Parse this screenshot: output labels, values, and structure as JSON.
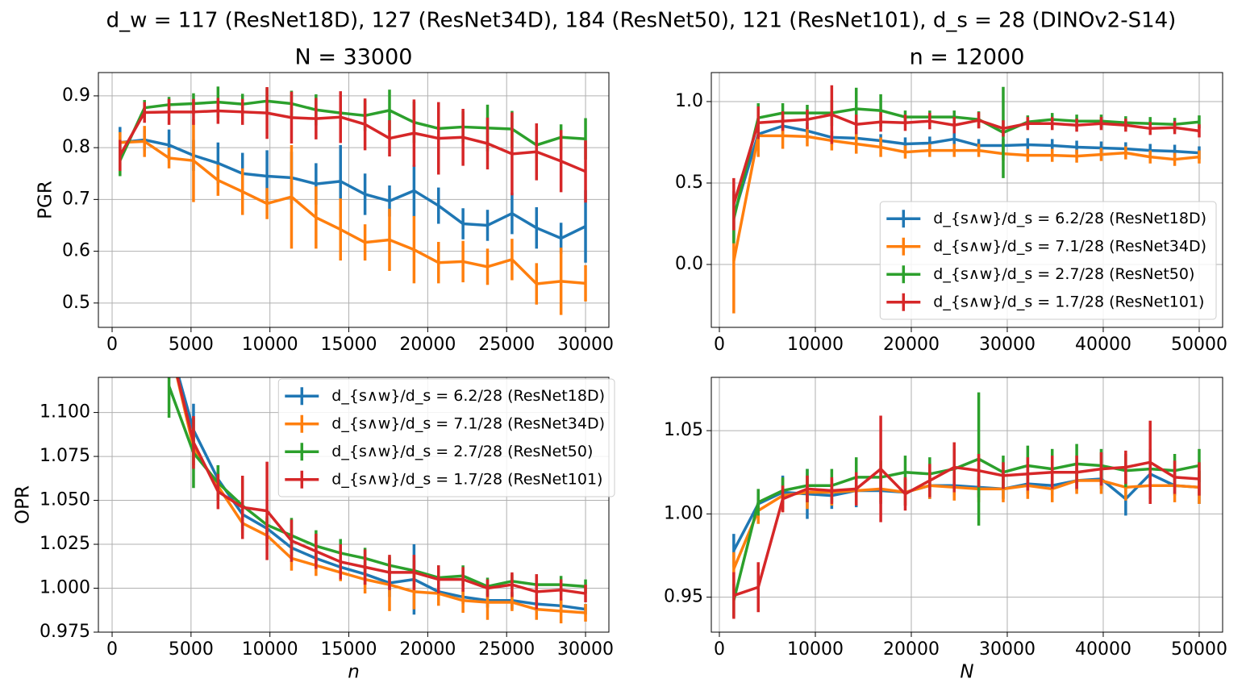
{
  "title": "d_w = 117 (ResNet18D), 127 (ResNet34D), 184 (ResNet50), 121 (ResNet101), d_s = 28 (DINOv2-S14)",
  "chart_data": [
    {
      "type": "line",
      "title": "N = 33000",
      "ylabel": "PGR",
      "grid": true,
      "x": [
        500,
        2053,
        3605,
        5158,
        6711,
        8263,
        9816,
        11368,
        12921,
        14474,
        16026,
        17579,
        19132,
        20684,
        22237,
        23789,
        25342,
        26895,
        28447,
        30000
      ],
      "xlim": [
        -870,
        31480
      ],
      "ylim": [
        0.453,
        0.945
      ],
      "xticks": [
        0,
        5000,
        10000,
        15000,
        20000,
        25000,
        30000
      ],
      "yticks": [
        0.5,
        0.6,
        0.7,
        0.8,
        0.9
      ],
      "series": [
        {
          "color": "#1f77b4",
          "values": [
            0.81,
            0.815,
            0.805,
            0.785,
            0.77,
            0.75,
            0.745,
            0.742,
            0.73,
            0.735,
            0.71,
            0.697,
            0.717,
            0.688,
            0.653,
            0.65,
            0.673,
            0.645,
            0.625,
            0.648
          ],
          "errors": [
            0.03,
            0.02,
            0.03,
            0.03,
            0.04,
            0.04,
            0.05,
            0.05,
            0.04,
            0.07,
            0.04,
            0.03,
            0.05,
            0.035,
            0.03,
            0.03,
            0.04,
            0.04,
            0.03,
            0.07
          ]
        },
        {
          "color": "#ff7f0e",
          "values": [
            0.81,
            0.812,
            0.78,
            0.775,
            0.737,
            0.715,
            0.692,
            0.705,
            0.665,
            0.642,
            0.617,
            0.622,
            0.603,
            0.578,
            0.58,
            0.57,
            0.584,
            0.537,
            0.542,
            0.538
          ],
          "errors": [
            0.02,
            0.03,
            0.02,
            0.08,
            0.03,
            0.045,
            0.03,
            0.1,
            0.06,
            0.06,
            0.035,
            0.06,
            0.065,
            0.04,
            0.04,
            0.035,
            0.04,
            0.04,
            0.065,
            0.035
          ]
        },
        {
          "color": "#2ca02c",
          "values": [
            0.775,
            0.877,
            0.883,
            0.885,
            0.888,
            0.884,
            0.89,
            0.885,
            0.873,
            0.867,
            0.862,
            0.872,
            0.849,
            0.837,
            0.84,
            0.838,
            0.836,
            0.805,
            0.82,
            0.817
          ],
          "errors": [
            0.03,
            0.015,
            0.015,
            0.02,
            0.03,
            0.02,
            0.025,
            0.025,
            0.03,
            0.025,
            0.03,
            0.04,
            0.04,
            0.03,
            0.03,
            0.045,
            0.035,
            0.03,
            0.025,
            0.04
          ]
        },
        {
          "color": "#d62728",
          "values": [
            0.785,
            0.868,
            0.869,
            0.869,
            0.871,
            0.869,
            0.867,
            0.858,
            0.856,
            0.859,
            0.845,
            0.818,
            0.828,
            0.818,
            0.82,
            0.808,
            0.788,
            0.792,
            0.774,
            0.754
          ],
          "errors": [
            0.03,
            0.02,
            0.025,
            0.025,
            0.025,
            0.025,
            0.05,
            0.05,
            0.04,
            0.05,
            0.05,
            0.035,
            0.065,
            0.07,
            0.055,
            0.05,
            0.08,
            0.055,
            0.06,
            0.06
          ]
        }
      ]
    },
    {
      "type": "line",
      "title": "n = 12000",
      "grid": true,
      "legend": "lower right",
      "x": [
        1500,
        4053,
        6605,
        9158,
        11711,
        14263,
        16816,
        19368,
        21921,
        24474,
        27026,
        29579,
        32132,
        34684,
        37237,
        39789,
        42342,
        44895,
        47447,
        50000
      ],
      "xlim": [
        -840,
        52440
      ],
      "ylim": [
        -0.386,
        1.178
      ],
      "xticks": [
        0,
        10000,
        20000,
        30000,
        40000,
        50000
      ],
      "yticks": [
        {
          "value": 0,
          "label": "0.0"
        },
        0.5,
        {
          "value": 1,
          "label": "1.0"
        }
      ],
      "series": [
        {
          "name": "d_{s∧w}/d_s = 6.2/28 (ResNet18D)",
          "color": "#1f77b4",
          "values": [
            0.3,
            0.8,
            0.85,
            0.82,
            0.78,
            0.775,
            0.76,
            0.74,
            0.745,
            0.77,
            0.73,
            0.73,
            0.735,
            0.73,
            0.72,
            0.715,
            0.71,
            0.7,
            0.695,
            0.685
          ],
          "errors": [
            0.15,
            0.1,
            0.05,
            0.05,
            0.04,
            0.04,
            0.04,
            0.04,
            0.04,
            0.04,
            0.04,
            0.04,
            0.04,
            0.04,
            0.04,
            0.04,
            0.04,
            0.04,
            0.04,
            0.04
          ]
        },
        {
          "name": "d_{s∧w}/d_s = 7.1/28 (ResNet34D)",
          "color": "#ff7f0e",
          "values": [
            0.02,
            0.79,
            0.79,
            0.785,
            0.76,
            0.74,
            0.72,
            0.69,
            0.7,
            0.7,
            0.7,
            0.68,
            0.67,
            0.67,
            0.665,
            0.675,
            0.685,
            0.66,
            0.645,
            0.66
          ],
          "errors": [
            0.32,
            0.13,
            0.08,
            0.06,
            0.06,
            0.06,
            0.06,
            0.04,
            0.04,
            0.04,
            0.04,
            0.04,
            0.04,
            0.04,
            0.04,
            0.04,
            0.04,
            0.04,
            0.04,
            0.04
          ]
        },
        {
          "name": "d_{s∧w}/d_s = 2.7/28 (ResNet50)",
          "color": "#2ca02c",
          "values": [
            0.28,
            0.9,
            0.93,
            0.93,
            0.93,
            0.955,
            0.945,
            0.905,
            0.905,
            0.905,
            0.89,
            0.81,
            0.875,
            0.89,
            0.88,
            0.88,
            0.87,
            0.865,
            0.86,
            0.875
          ],
          "errors": [
            0.15,
            0.09,
            0.06,
            0.05,
            0.08,
            0.13,
            0.1,
            0.04,
            0.04,
            0.04,
            0.05,
            0.28,
            0.04,
            0.04,
            0.04,
            0.04,
            0.04,
            0.04,
            0.04,
            0.04
          ]
        },
        {
          "name": "d_{s∧w}/d_s = 1.7/28 (ResNet101)",
          "color": "#d62728",
          "values": [
            0.37,
            0.87,
            0.88,
            0.89,
            0.92,
            0.86,
            0.875,
            0.87,
            0.88,
            0.855,
            0.885,
            0.835,
            0.865,
            0.865,
            0.855,
            0.865,
            0.855,
            0.835,
            0.84,
            0.82
          ],
          "errors": [
            0.16,
            0.1,
            0.06,
            0.06,
            0.18,
            0.06,
            0.06,
            0.05,
            0.05,
            0.05,
            0.05,
            0.05,
            0.04,
            0.04,
            0.04,
            0.04,
            0.04,
            0.04,
            0.04,
            0.04
          ]
        }
      ]
    },
    {
      "type": "line",
      "xlabel": "n",
      "ylabel": "OPR",
      "grid": true,
      "legend": "upper right",
      "x": [
        3605,
        5158,
        6711,
        8263,
        9816,
        11368,
        12921,
        14474,
        16026,
        17579,
        19132,
        20684,
        22237,
        23789,
        25342,
        26895,
        28447,
        30000
      ],
      "xlim": [
        -870,
        31480
      ],
      "ylim": [
        0.975,
        1.12
      ],
      "xticks": [
        0,
        5000,
        10000,
        15000,
        20000,
        25000,
        30000
      ],
      "yticks": [
        0.975,
        {
          "value": 1,
          "label": "1.000"
        },
        1.025,
        {
          "value": 1.05,
          "label": "1.050"
        },
        1.075,
        {
          "value": 1.1,
          "label": "1.100"
        }
      ],
      "series": [
        {
          "name": "d_{s∧w}/d_s = 6.2/28 (ResNet18D)",
          "color": "#1f77b4",
          "values": [
            1.14,
            1.09,
            1.062,
            1.042,
            1.034,
            1.023,
            1.017,
            1.012,
            1.008,
            1.003,
            1.005,
            0.998,
            0.995,
            0.993,
            0.993,
            0.991,
            0.99,
            0.988
          ],
          "errors": [
            0.02,
            0.015,
            0.008,
            0.008,
            0.006,
            0.005,
            0.005,
            0.006,
            0.006,
            0.008,
            0.02,
            0.006,
            0.004,
            0.004,
            0.005,
            0.004,
            0.003,
            0.003
          ]
        },
        {
          "name": "d_{s∧w}/d_s = 7.1/28 (ResNet34D)",
          "color": "#ff7f0e",
          "values": [
            1.14,
            1.08,
            1.058,
            1.037,
            1.03,
            1.017,
            1.013,
            1.009,
            1.005,
            1.002,
            0.998,
            0.997,
            0.993,
            0.992,
            0.992,
            0.988,
            0.987,
            0.986
          ],
          "errors": [
            0.02,
            0.01,
            0.008,
            0.007,
            0.006,
            0.007,
            0.006,
            0.005,
            0.008,
            0.015,
            0.01,
            0.007,
            0.007,
            0.01,
            0.005,
            0.006,
            0.007,
            0.005
          ]
        },
        {
          "name": "d_{s∧w}/d_s = 2.7/28 (ResNet50)",
          "color": "#2ca02c",
          "values": [
            1.115,
            1.077,
            1.06,
            1.047,
            1.036,
            1.03,
            1.024,
            1.02,
            1.017,
            1.013,
            1.01,
            1.006,
            1.007,
            1.001,
            1.004,
            1.002,
            1.002,
            1.001
          ],
          "errors": [
            0.018,
            0.02,
            0.01,
            0.015,
            0.005,
            0.01,
            0.009,
            0.008,
            0.006,
            0.005,
            0.006,
            0.007,
            0.006,
            0.005,
            0.004,
            0.005,
            0.005,
            0.004
          ]
        },
        {
          "name": "d_{s∧w}/d_s = 1.7/28 (ResNet101)",
          "color": "#d62728",
          "values": [
            1.14,
            1.083,
            1.055,
            1.046,
            1.044,
            1.027,
            1.021,
            1.015,
            1.012,
            1.009,
            1.009,
            1.005,
            1.005,
            1.0,
            1.002,
            0.998,
            0.999,
            0.997
          ],
          "errors": [
            0.02,
            0.015,
            0.01,
            0.018,
            0.028,
            0.012,
            0.01,
            0.01,
            0.01,
            0.01,
            0.01,
            0.008,
            0.007,
            0.005,
            0.007,
            0.01,
            0.006,
            0.005
          ]
        }
      ]
    },
    {
      "type": "line",
      "xlabel": "N",
      "grid": true,
      "x": [
        1500,
        4053,
        6605,
        9158,
        11711,
        14263,
        16816,
        19368,
        21921,
        24474,
        27026,
        29579,
        32132,
        34684,
        37237,
        39789,
        42342,
        44895,
        47447,
        50000
      ],
      "xlim": [
        -840,
        52440
      ],
      "ylim": [
        0.929,
        1.082
      ],
      "xticks": [
        0,
        10000,
        20000,
        30000,
        40000,
        50000
      ],
      "yticks": [
        0.95,
        {
          "value": 1,
          "label": "1.00"
        },
        1.05
      ],
      "series": [
        {
          "color": "#1f77b4",
          "values": [
            0.978,
            1.006,
            1.013,
            1.012,
            1.011,
            1.014,
            1.014,
            1.013,
            1.017,
            1.017,
            1.016,
            1.015,
            1.018,
            1.017,
            1.02,
            1.021,
            1.009,
            1.024,
            1.017,
            1.016
          ],
          "errors": [
            0.01,
            0.008,
            0.01,
            0.015,
            0.008,
            0.01,
            0.008,
            0.008,
            0.008,
            0.006,
            0.006,
            0.006,
            0.006,
            0.006,
            0.006,
            0.006,
            0.01,
            0.015,
            0.006,
            0.01
          ]
        },
        {
          "color": "#ff7f0e",
          "values": [
            0.967,
            1.002,
            1.011,
            1.013,
            1.013,
            1.014,
            1.015,
            1.013,
            1.017,
            1.016,
            1.015,
            1.015,
            1.017,
            1.015,
            1.02,
            1.02,
            1.016,
            1.017,
            1.017,
            1.016
          ],
          "errors": [
            0.01,
            0.008,
            0.01,
            0.01,
            0.008,
            0.008,
            0.008,
            0.008,
            0.008,
            0.008,
            0.008,
            0.008,
            0.008,
            0.008,
            0.008,
            0.008,
            0.008,
            0.008,
            0.01,
            0.01
          ]
        },
        {
          "color": "#2ca02c",
          "values": [
            0.948,
            1.007,
            1.014,
            1.017,
            1.017,
            1.022,
            1.022,
            1.025,
            1.024,
            1.027,
            1.033,
            1.025,
            1.029,
            1.027,
            1.03,
            1.029,
            1.026,
            1.027,
            1.026,
            1.029
          ],
          "errors": [
            0.01,
            0.008,
            0.008,
            0.01,
            0.01,
            0.012,
            0.01,
            0.01,
            0.01,
            0.012,
            0.04,
            0.01,
            0.012,
            0.012,
            0.012,
            0.01,
            0.01,
            0.01,
            0.01,
            0.01
          ]
        },
        {
          "color": "#d62728",
          "values": [
            0.951,
            0.956,
            1.009,
            1.015,
            1.014,
            1.015,
            1.027,
            1.012,
            1.02,
            1.028,
            1.026,
            1.023,
            1.024,
            1.025,
            1.025,
            1.027,
            1.028,
            1.031,
            1.022,
            1.021
          ],
          "errors": [
            0.014,
            0.015,
            0.008,
            0.008,
            0.008,
            0.01,
            0.032,
            0.01,
            0.01,
            0.015,
            0.01,
            0.008,
            0.01,
            0.01,
            0.01,
            0.01,
            0.01,
            0.025,
            0.01,
            0.01
          ]
        }
      ]
    }
  ]
}
